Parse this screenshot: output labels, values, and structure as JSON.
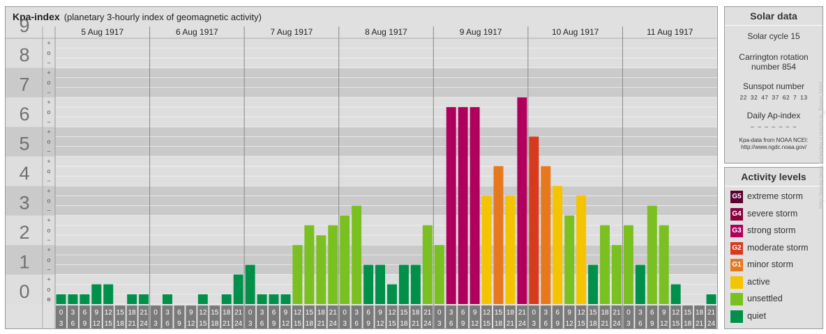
{
  "chart_data": {
    "type": "bar",
    "title": "Kpa-index",
    "subtitle": "(planetary 3-hourly index of geomagnetic activity)",
    "ylim": [
      0,
      9
    ],
    "y_ticks": [
      "0",
      "1",
      "2",
      "3",
      "4",
      "5",
      "6",
      "7",
      "8",
      "9"
    ],
    "y_subticks": [
      "+",
      "o",
      "−"
    ],
    "days": [
      "5 Aug 1917",
      "6 Aug 1917",
      "7 Aug 1917",
      "8 Aug 1917",
      "9 Aug 1917",
      "10 Aug 1917",
      "11 Aug 1917"
    ],
    "interval_top": [
      "0",
      "3",
      "6",
      "9",
      "12",
      "15",
      "18",
      "21"
    ],
    "interval_bottom": [
      "3",
      "6",
      "9",
      "12",
      "15",
      "18",
      "21",
      "24"
    ],
    "values": [
      [
        0.33,
        0.33,
        0.33,
        0.67,
        0.67,
        0.0,
        0.33,
        0.33
      ],
      [
        0.0,
        0.33,
        0.0,
        0.0,
        0.33,
        0.0,
        0.33,
        1.0
      ],
      [
        1.33,
        0.33,
        0.33,
        0.33,
        2.0,
        2.67,
        2.33,
        2.67
      ],
      [
        3.0,
        3.33,
        1.33,
        1.33,
        0.67,
        1.33,
        1.33,
        2.67
      ],
      [
        2.0,
        6.67,
        6.67,
        6.67,
        3.67,
        4.67,
        3.67,
        7.0
      ],
      [
        5.67,
        4.67,
        4.0,
        3.0,
        3.67,
        1.33,
        2.67,
        2.0
      ],
      [
        2.67,
        1.33,
        3.33,
        2.67,
        0.67,
        0.0,
        0.0,
        0.33
      ]
    ],
    "legend_placement": "right"
  },
  "solar": {
    "heading": "Solar data",
    "cycle": "Solar cycle 15",
    "carrington_line1": "Carrington rotation",
    "carrington_line2": "number 854",
    "sunspot_heading": "Sunspot number",
    "sunspots": "22 32 47 37 62 7 13",
    "ap_heading": "Daily Ap-index",
    "ap_values": "– – – – – – –",
    "source_line1": "Kpa-data from NOAA NCEI:",
    "source_line2": "http://www.ngdc.noaa.gov/"
  },
  "levels": {
    "heading": "Activity levels",
    "items": [
      {
        "code": "G5",
        "label": "extreme storm",
        "color": "#5c0030"
      },
      {
        "code": "G4",
        "label": "severe storm",
        "color": "#8a0040"
      },
      {
        "code": "G3",
        "label": "strong storm",
        "color": "#b0005e"
      },
      {
        "code": "G2",
        "label": "moderate storm",
        "color": "#d83a1e"
      },
      {
        "code": "G1",
        "label": "minor storm",
        "color": "#e8781e"
      },
      {
        "code": "",
        "label": "active",
        "color": "#f5c400"
      },
      {
        "code": "",
        "label": "unsettled",
        "color": "#7ac020"
      },
      {
        "code": "",
        "label": "quiet",
        "color": "#00904a"
      }
    ]
  },
  "watermark": "http://www.tesis.lebedev.ru/en/sun_flares.html"
}
